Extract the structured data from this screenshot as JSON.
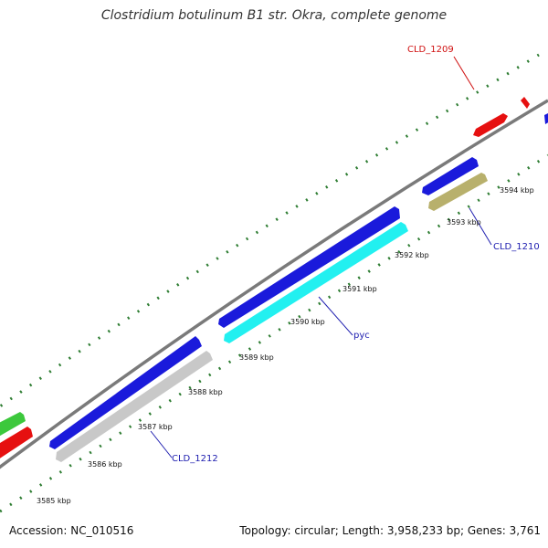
{
  "title": "Clostridium botulinum B1 str. Okra, complete genome",
  "footer": {
    "accession": "Accession: NC_010516",
    "summary": "Topology: circular; Length: 3,958,233 bp; Genes: 3,761"
  },
  "colors": {
    "backbone": "#7a7a7a",
    "ticks": "#2e7d32",
    "blue": "#1a1adb",
    "red": "#e61010",
    "green": "#3cc83c",
    "cyan": "#22f0f0",
    "gray": "#c8c8c8",
    "olive": "#b8b06c",
    "label_red": "#d01010",
    "label_blue": "#2020b0"
  },
  "kbp_labels": [
    {
      "text": "3585 kbp"
    },
    {
      "text": "3586 kbp"
    },
    {
      "text": "3587 kbp"
    },
    {
      "text": "3588 kbp"
    },
    {
      "text": "3589 kbp"
    },
    {
      "text": "3590 kbp"
    },
    {
      "text": "3591 kbp"
    },
    {
      "text": "3592 kbp"
    },
    {
      "text": "3593 kbp"
    },
    {
      "text": "3594 kbp"
    }
  ],
  "gene_labels": [
    {
      "text": "CLD_1209",
      "color": "red"
    },
    {
      "text": "CLD_1210",
      "color": "blue"
    },
    {
      "text": "pyc",
      "color": "blue"
    },
    {
      "text": "CLD_1212",
      "color": "blue"
    }
  ],
  "features": [
    {
      "name": "red-gene-top",
      "color": "red"
    },
    {
      "name": "red-small-arrow",
      "color": "red"
    },
    {
      "name": "blue-edge-gene",
      "color": "blue"
    },
    {
      "name": "blue-short-gene",
      "color": "blue"
    },
    {
      "name": "olive-gene",
      "color": "olive"
    },
    {
      "name": "blue-long-gene-1",
      "color": "blue"
    },
    {
      "name": "cyan-pyc-gene",
      "color": "cyan"
    },
    {
      "name": "blue-long-gene-2",
      "color": "blue"
    },
    {
      "name": "gray-gene",
      "color": "gray"
    },
    {
      "name": "green-gene",
      "color": "green"
    },
    {
      "name": "red-gene-left",
      "color": "red"
    }
  ]
}
